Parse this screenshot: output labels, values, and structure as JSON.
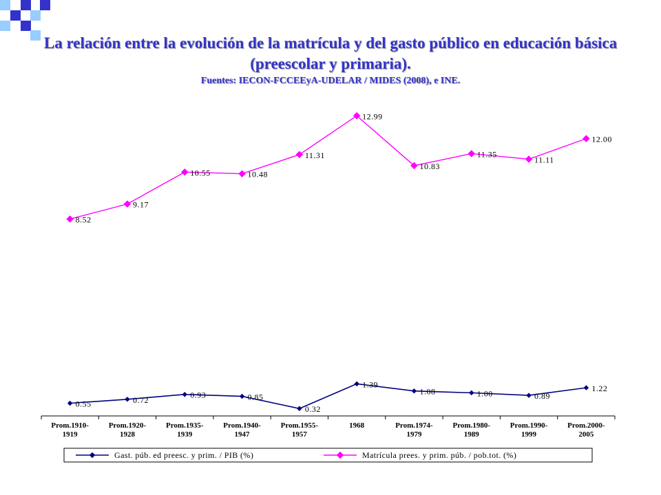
{
  "slide": {
    "title": "La relación entre la evolución de la matrícula y del gasto público en educación básica (preescolar y primaria).",
    "source": "Fuentes: IECON-FCCEEyA-UDELAR / MIDES (2008), e INE.",
    "logo_colors": [
      "#3333cc",
      "#99ccff"
    ]
  },
  "chart_data": {
    "type": "line",
    "categories": [
      [
        "Prom.1910-",
        "1919"
      ],
      [
        "Prom.1920-",
        "1928"
      ],
      [
        "Prom.1935-",
        "1939"
      ],
      [
        "Prom.1940-",
        "1947"
      ],
      [
        "Prom.1955-",
        "1957"
      ],
      [
        "1968"
      ],
      [
        "Prom.1974-",
        "1979"
      ],
      [
        "Prom.1980-",
        "1989"
      ],
      [
        "Prom.1990-",
        "1999"
      ],
      [
        "Prom.2000-",
        "2005"
      ]
    ],
    "series": [
      {
        "name": "Gast. púb. ed preesc. y prim. / PIB (%)",
        "color": "#000080",
        "marker": "diamond",
        "values": [
          0.55,
          0.72,
          0.93,
          0.85,
          0.32,
          1.39,
          1.08,
          1.0,
          0.89,
          1.22
        ],
        "labels": [
          "0.55",
          "0.72",
          "0.93",
          "0.85",
          "0.32",
          "1.39",
          "1.08",
          "1.00",
          "0.89",
          "1.22"
        ]
      },
      {
        "name": "Matrícula prees. y prim. púb. / pob.tot. (%)",
        "color": "#ff00ff",
        "marker": "diamond",
        "values": [
          8.52,
          9.17,
          10.55,
          10.48,
          11.31,
          12.99,
          10.83,
          11.35,
          11.11,
          12.0
        ],
        "labels": [
          "8.52",
          "9.17",
          "10.55",
          "10.48",
          "11.31",
          "12.99",
          "10.83",
          "11.35",
          "11.11",
          "12.00"
        ]
      }
    ],
    "ylim": [
      0,
      13
    ],
    "legend_position": "bottom",
    "grid": false
  }
}
